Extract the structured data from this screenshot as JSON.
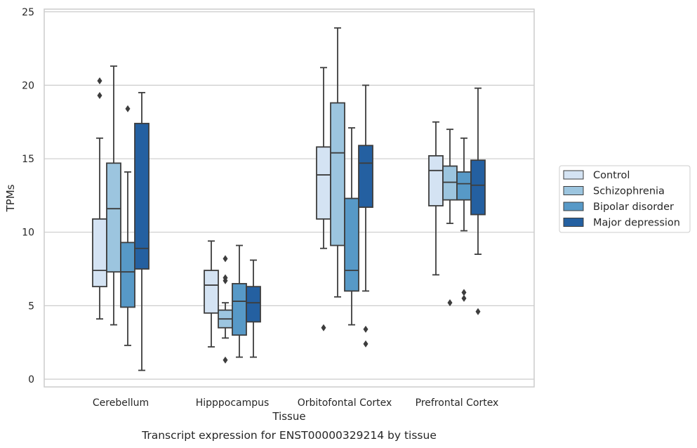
{
  "chart_data": {
    "type": "box",
    "xlabel": "Tissue",
    "ylabel": "TPMs",
    "caption": "Transcript expression for ENST00000329214 by tissue",
    "ylim": [
      -0.5,
      25.3
    ],
    "yticks": [
      0,
      5,
      10,
      15,
      20,
      25
    ],
    "grid": "horizontal",
    "legend_position": "right",
    "categories": [
      "Cerebellum",
      "Hipppocampus",
      "Orbitofontal Cortex",
      "Prefrontal Cortex"
    ],
    "series": [
      {
        "name": "Control",
        "color": "#d4e3f3",
        "boxes": [
          {
            "min": 4.1,
            "q1": 6.3,
            "median": 7.4,
            "q3": 10.9,
            "max": 16.4,
            "outliers": [
              19.3,
              20.3
            ]
          },
          {
            "min": 2.2,
            "q1": 4.5,
            "median": 6.4,
            "q3": 7.4,
            "max": 9.4,
            "outliers": []
          },
          {
            "min": 8.9,
            "q1": 10.9,
            "median": 13.9,
            "q3": 15.8,
            "max": 21.2,
            "outliers": [
              3.5
            ]
          },
          {
            "min": 7.1,
            "q1": 11.8,
            "median": 14.2,
            "q3": 15.2,
            "max": 17.5,
            "outliers": []
          }
        ]
      },
      {
        "name": "Schizophrenia",
        "color": "#9cc5df",
        "boxes": [
          {
            "min": 3.7,
            "q1": 7.3,
            "median": 11.6,
            "q3": 14.7,
            "max": 21.3,
            "outliers": []
          },
          {
            "min": 2.8,
            "q1": 3.5,
            "median": 4.1,
            "q3": 4.7,
            "max": 5.2,
            "outliers": [
              1.3,
              6.7,
              6.9,
              8.2
            ]
          },
          {
            "min": 5.6,
            "q1": 9.1,
            "median": 15.4,
            "q3": 18.8,
            "max": 23.9,
            "outliers": []
          },
          {
            "min": 10.6,
            "q1": 12.2,
            "median": 13.4,
            "q3": 14.5,
            "max": 17.0,
            "outliers": [
              5.2
            ]
          }
        ]
      },
      {
        "name": "Bipolar disorder",
        "color": "#5799c7",
        "boxes": [
          {
            "min": 2.3,
            "q1": 4.9,
            "median": 7.3,
            "q3": 9.3,
            "max": 14.1,
            "outliers": [
              18.4
            ]
          },
          {
            "min": 1.5,
            "q1": 3.0,
            "median": 5.3,
            "q3": 6.5,
            "max": 9.1,
            "outliers": []
          },
          {
            "min": 3.7,
            "q1": 6.0,
            "median": 7.4,
            "q3": 12.3,
            "max": 17.1,
            "outliers": []
          },
          {
            "min": 10.1,
            "q1": 12.2,
            "median": 13.3,
            "q3": 14.1,
            "max": 16.4,
            "outliers": [
              5.5,
              5.9
            ]
          }
        ]
      },
      {
        "name": "Major depression",
        "color": "#2460a1",
        "boxes": [
          {
            "min": 0.6,
            "q1": 7.5,
            "median": 8.9,
            "q3": 17.4,
            "max": 19.5,
            "outliers": []
          },
          {
            "min": 1.5,
            "q1": 3.9,
            "median": 5.2,
            "q3": 6.3,
            "max": 8.1,
            "outliers": []
          },
          {
            "min": 6.0,
            "q1": 11.7,
            "median": 14.7,
            "q3": 15.9,
            "max": 20.0,
            "outliers": [
              2.4,
              3.4
            ]
          },
          {
            "min": 8.5,
            "q1": 11.2,
            "median": 13.2,
            "q3": 14.9,
            "max": 19.8,
            "outliers": [
              4.6
            ]
          }
        ]
      }
    ]
  }
}
